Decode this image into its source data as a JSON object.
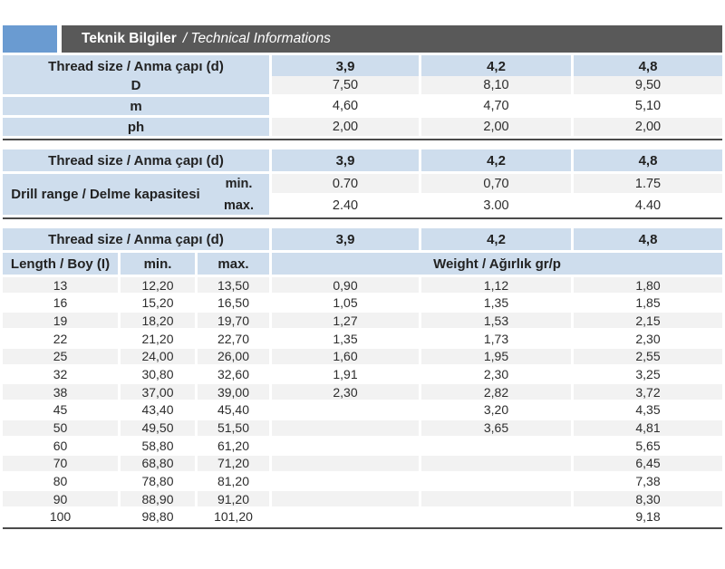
{
  "title": {
    "bold": "Teknik Bilgiler",
    "italic": "/ Technical Informations"
  },
  "colors": {
    "accent_blue": "#6a9bd1",
    "bar_dark": "#595959",
    "cell_blue": "#cedded",
    "row_gray": "#f2f2f2",
    "row_white": "#ffffff",
    "table_border": "#4b4b4b"
  },
  "tables": {
    "dimensions": {
      "header_label": "Thread size / Anma çapı (d)",
      "columns": [
        "3,9",
        "4,2",
        "4,8"
      ],
      "rows": [
        {
          "label": "D",
          "values": [
            "7,50",
            "8,10",
            "9,50"
          ]
        },
        {
          "label": "m",
          "values": [
            "4,60",
            "4,70",
            "5,10"
          ]
        },
        {
          "label": "ph",
          "values": [
            "2,00",
            "2,00",
            "2,00"
          ]
        }
      ]
    },
    "drill_range": {
      "header_label": "Thread size / Anma çapı (d)",
      "columns": [
        "3,9",
        "4,2",
        "4,8"
      ],
      "group_label": "Drill range / Delme kapasitesi",
      "rows": [
        {
          "label": "min.",
          "values": [
            "0.70",
            "0,70",
            "1.75"
          ]
        },
        {
          "label": "max.",
          "values": [
            "2.40",
            "3.00",
            "4.40"
          ]
        }
      ]
    },
    "length_weight": {
      "header_label": "Thread size / Anma çapı (d)",
      "columns": [
        "3,9",
        "4,2",
        "4,8"
      ],
      "length_label": "Length / Boy (I)",
      "min_label": "min.",
      "max_label": "max.",
      "weight_label": "Weight / Ağırlık gr/p",
      "rows": [
        {
          "length": "13",
          "min": "12,20",
          "max": "13,50",
          "weights": [
            "0,90",
            "1,12",
            "1,80"
          ]
        },
        {
          "length": "16",
          "min": "15,20",
          "max": "16,50",
          "weights": [
            "1,05",
            "1,35",
            "1,85"
          ]
        },
        {
          "length": "19",
          "min": "18,20",
          "max": "19,70",
          "weights": [
            "1,27",
            "1,53",
            "2,15"
          ]
        },
        {
          "length": "22",
          "min": "21,20",
          "max": "22,70",
          "weights": [
            "1,35",
            "1,73",
            "2,30"
          ]
        },
        {
          "length": "25",
          "min": "24,00",
          "max": "26,00",
          "weights": [
            "1,60",
            "1,95",
            "2,55"
          ]
        },
        {
          "length": "32",
          "min": "30,80",
          "max": "32,60",
          "weights": [
            "1,91",
            "2,30",
            "3,25"
          ]
        },
        {
          "length": "38",
          "min": "37,00",
          "max": "39,00",
          "weights": [
            "2,30",
            "2,82",
            "3,72"
          ]
        },
        {
          "length": "45",
          "min": "43,40",
          "max": "45,40",
          "weights": [
            "",
            "3,20",
            "4,35"
          ]
        },
        {
          "length": "50",
          "min": "49,50",
          "max": "51,50",
          "weights": [
            "",
            "3,65",
            "4,81"
          ]
        },
        {
          "length": "60",
          "min": "58,80",
          "max": "61,20",
          "weights": [
            "",
            "",
            "5,65"
          ]
        },
        {
          "length": "70",
          "min": "68,80",
          "max": "71,20",
          "weights": [
            "",
            "",
            "6,45"
          ]
        },
        {
          "length": "80",
          "min": "78,80",
          "max": "81,20",
          "weights": [
            "",
            "",
            "7,38"
          ]
        },
        {
          "length": "90",
          "min": "88,90",
          "max": "91,20",
          "weights": [
            "",
            "",
            "8,30"
          ]
        },
        {
          "length": "100",
          "min": "98,80",
          "max": "101,20",
          "weights": [
            "",
            "",
            "9,18"
          ]
        }
      ]
    }
  }
}
